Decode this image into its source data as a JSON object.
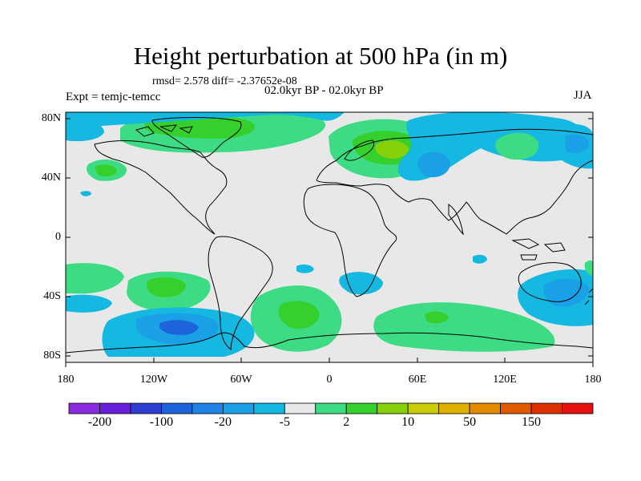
{
  "title": "Height perturbation at 500 hPa (in m)",
  "stats": "rmsd= 2.578 diff= -2.37652e-08",
  "period": "02.0kyr BP - 02.0kyr BP",
  "experiment": "Expt = temjc-temcc",
  "season": "JJA",
  "lat_labels": [
    "80N",
    "40N",
    "0",
    "40S",
    "80S"
  ],
  "lon_labels": [
    "180",
    "120W",
    "60W",
    "0",
    "60E",
    "120E",
    "180"
  ],
  "colorbar": {
    "colors": [
      "#8a2be2",
      "#6a1fd8",
      "#2d3fd0",
      "#1e62dc",
      "#1f84e6",
      "#1aa0e6",
      "#14b8e0",
      "#e8e8e8",
      "#3ddc84",
      "#35d02c",
      "#86d10a",
      "#c9cd08",
      "#e0b000",
      "#e38a00",
      "#e25a00",
      "#dd3000",
      "#e61010"
    ],
    "tick_labels": [
      "-200",
      "-100",
      "-20",
      "-5",
      "2",
      "10",
      "50",
      "150"
    ]
  },
  "map_colors": {
    "land_bg": "#e6e6e6",
    "coast": "#000000"
  }
}
